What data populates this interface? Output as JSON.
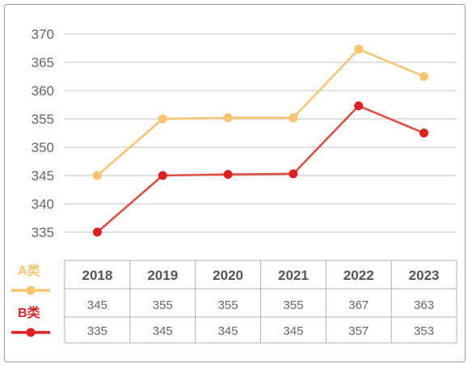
{
  "chart_data": {
    "type": "line",
    "title": "",
    "xlabel": "",
    "ylabel": "",
    "x": [
      "2018",
      "2019",
      "2020",
      "2021",
      "2022",
      "2023"
    ],
    "ylim": [
      330,
      370
    ],
    "yticks": [
      "335",
      "340",
      "345",
      "350",
      "355",
      "360",
      "365",
      "370"
    ],
    "grid": true,
    "legend": "left of data table",
    "series": [
      {
        "name": "A类",
        "color": "#f8c46c",
        "values": [
          345,
          355,
          355.2,
          355.2,
          367.3,
          362.5
        ],
        "table_values": [
          "345",
          "355",
          "355",
          "355",
          "367",
          "363"
        ]
      },
      {
        "name": "B类",
        "color": "#e02020",
        "line_color": "#e04a40",
        "values": [
          335,
          345,
          345.2,
          345.3,
          357.3,
          352.5
        ],
        "table_values": [
          "335",
          "345",
          "345",
          "345",
          "357",
          "353"
        ]
      }
    ]
  }
}
